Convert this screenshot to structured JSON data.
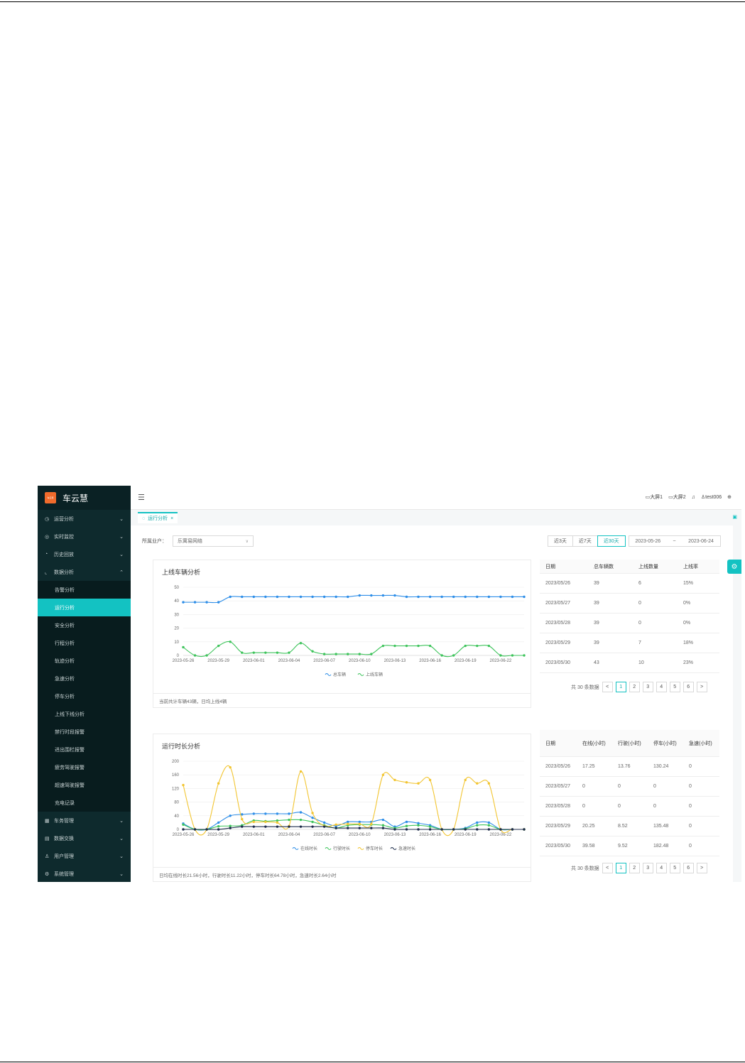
{
  "sidebar": {
    "logo_text": "车云慧",
    "logo_badge": "车云慧",
    "menu": [
      {
        "label": "运营分析",
        "icon": "clock-icon",
        "glyph": "◷",
        "chev": "⌄"
      },
      {
        "label": "实时监控",
        "icon": "eye-icon",
        "glyph": "◎",
        "chev": "⌄"
      },
      {
        "label": "历史回放",
        "icon": "history-icon",
        "glyph": "◔",
        "chev": "⌄"
      },
      {
        "label": "数据分析",
        "icon": "chart-icon",
        "glyph": "⌞",
        "chev": "⌃"
      }
    ],
    "submenu": [
      "告警分析",
      "运行分析",
      "安全分析",
      "行程分析",
      "轨迹分析",
      "急速分析",
      "停车分析",
      "上线下线分析",
      "禁行时段报警",
      "进出围栏报警",
      "疲劳驾驶报警",
      "超速驾驶报警",
      "充电记录"
    ],
    "menu_bottom": [
      {
        "label": "车务管理",
        "icon": "grid-icon",
        "glyph": "▦",
        "chev": "⌄"
      },
      {
        "label": "数据交换",
        "icon": "doc-icon",
        "glyph": "▤",
        "chev": "⌄"
      },
      {
        "label": "用户管理",
        "icon": "user-icon",
        "glyph": "♙",
        "chev": "⌄"
      },
      {
        "label": "系统管理",
        "icon": "gear-icon",
        "glyph": "⚙",
        "chev": "⌄"
      }
    ]
  },
  "topbar": {
    "screen1": "大屏1",
    "screen2": "大屏2",
    "username": "test006"
  },
  "tab": {
    "label": "运行分析",
    "close": "×"
  },
  "filter": {
    "label": "所属业户：",
    "value": "乐寓易网络"
  },
  "range": {
    "btn3": "近3天",
    "btn7": "近7天",
    "btn30": "近30天",
    "start": "2023-05-26",
    "sep": "~",
    "end": "2023-06-24"
  },
  "online_card": {
    "title": "上线车辆分析",
    "footer": "当前共计车辆43辆，日均上线4辆"
  },
  "runtime_card": {
    "title": "运行时长分析",
    "footer": "日均在线时长21.56小时，行驶时长11.22小时，停车时长64.78小时，急速时长2.64小时"
  },
  "chart_data": [
    {
      "type": "line",
      "title": "上线车辆分析",
      "x": [
        "2023-05-26",
        "2023-05-27",
        "2023-05-28",
        "2023-05-29",
        "2023-05-30",
        "2023-05-31",
        "2023-06-01",
        "2023-06-02",
        "2023-06-03",
        "2023-06-04",
        "2023-06-05",
        "2023-06-06",
        "2023-06-07",
        "2023-06-08",
        "2023-06-09",
        "2023-06-10",
        "2023-06-11",
        "2023-06-12",
        "2023-06-13",
        "2023-06-14",
        "2023-06-15",
        "2023-06-16",
        "2023-06-17",
        "2023-06-18",
        "2023-06-19",
        "2023-06-20",
        "2023-06-21",
        "2023-06-22",
        "2023-06-23",
        "2023-06-24"
      ],
      "x_tick_labels": [
        "2023-05-26",
        "2023-05-29",
        "2023-06-01",
        "2023-06-04",
        "2023-06-07",
        "2023-06-10",
        "2023-06-13",
        "2023-06-16",
        "2023-06-19",
        "2023-06-22"
      ],
      "ylim": [
        0,
        50
      ],
      "y_ticks": [
        0,
        10,
        20,
        30,
        40,
        50
      ],
      "legend": "bottom",
      "series": [
        {
          "name": "总车辆",
          "color": "#2e8ee8",
          "values": [
            39,
            39,
            39,
            39,
            43,
            43,
            43,
            43,
            43,
            43,
            43,
            43,
            43,
            43,
            43,
            44,
            44,
            44,
            44,
            43,
            43,
            43,
            43,
            43,
            43,
            43,
            43,
            43,
            43,
            43
          ]
        },
        {
          "name": "上线车辆",
          "color": "#3fc45c",
          "values": [
            6,
            0,
            0,
            7,
            10,
            2,
            2,
            2,
            2,
            2,
            9,
            3,
            1,
            1,
            1,
            1,
            1,
            7,
            7,
            7,
            7,
            7,
            0,
            0,
            7,
            7,
            7,
            0,
            0,
            0
          ]
        }
      ]
    },
    {
      "type": "line",
      "title": "运行时长分析",
      "x": [
        "2023-05-26",
        "2023-05-27",
        "2023-05-28",
        "2023-05-29",
        "2023-05-30",
        "2023-05-31",
        "2023-06-01",
        "2023-06-02",
        "2023-06-03",
        "2023-06-04",
        "2023-06-05",
        "2023-06-06",
        "2023-06-07",
        "2023-06-08",
        "2023-06-09",
        "2023-06-10",
        "2023-06-11",
        "2023-06-12",
        "2023-06-13",
        "2023-06-14",
        "2023-06-15",
        "2023-06-16",
        "2023-06-17",
        "2023-06-18",
        "2023-06-19",
        "2023-06-20",
        "2023-06-21",
        "2023-06-22",
        "2023-06-23",
        "2023-06-24"
      ],
      "x_tick_labels": [
        "2023-05-26",
        "2023-05-29",
        "2023-06-01",
        "2023-06-04",
        "2023-06-07",
        "2023-06-10",
        "2023-06-13",
        "2023-06-16",
        "2023-06-19",
        "2023-06-22"
      ],
      "ylim": [
        0,
        200
      ],
      "y_ticks": [
        0,
        40,
        80,
        120,
        160,
        200
      ],
      "legend": "bottom",
      "series": [
        {
          "name": "在线时长",
          "color": "#2e8ee8",
          "values": [
            17,
            0,
            0,
            20,
            40,
            44,
            46,
            46,
            46,
            46,
            50,
            34,
            20,
            10,
            22,
            22,
            22,
            28,
            8,
            22,
            18,
            12,
            0,
            0,
            4,
            20,
            20,
            0,
            0,
            0
          ]
        },
        {
          "name": "行驶时长",
          "color": "#3fc45c",
          "values": [
            14,
            0,
            0,
            9,
            10,
            12,
            26,
            24,
            26,
            28,
            28,
            22,
            12,
            4,
            12,
            14,
            14,
            12,
            4,
            10,
            12,
            8,
            0,
            0,
            2,
            12,
            12,
            0,
            0,
            0
          ]
        },
        {
          "name": "停车时长",
          "color": "#f2c531",
          "values": [
            130,
            0,
            0,
            135,
            182,
            30,
            22,
            22,
            20,
            10,
            170,
            48,
            10,
            14,
            16,
            16,
            16,
            160,
            145,
            138,
            135,
            145,
            0,
            0,
            145,
            135,
            135,
            0,
            0,
            0
          ]
        },
        {
          "name": "急速时长",
          "color": "#1d2b4a",
          "values": [
            0,
            0,
            0,
            0,
            4,
            8,
            8,
            8,
            8,
            8,
            8,
            8,
            8,
            4,
            4,
            4,
            4,
            4,
            0,
            0,
            0,
            0,
            0,
            0,
            0,
            0,
            0,
            0,
            0,
            0
          ]
        }
      ]
    }
  ],
  "online_table": {
    "headers": [
      "日期",
      "总车辆数",
      "上线数量",
      "上线率"
    ],
    "rows": [
      [
        "2023/05/26",
        "39",
        "6",
        "15%"
      ],
      [
        "2023/05/27",
        "39",
        "0",
        "0%"
      ],
      [
        "2023/05/28",
        "39",
        "0",
        "0%"
      ],
      [
        "2023/05/29",
        "39",
        "7",
        "18%"
      ],
      [
        "2023/05/30",
        "43",
        "10",
        "23%"
      ]
    ]
  },
  "runtime_table": {
    "headers": [
      "日期",
      "在线(小时)",
      "行驶(小时)",
      "停车(小时)",
      "急速(小时)"
    ],
    "rows": [
      [
        "2023/05/26",
        "17.25",
        "13.76",
        "130.24",
        "0"
      ],
      [
        "2023/05/27",
        "0",
        "0",
        "0",
        "0"
      ],
      [
        "2023/05/28",
        "0",
        "0",
        "0",
        "0"
      ],
      [
        "2023/05/29",
        "20.25",
        "8.52",
        "135.48",
        "0"
      ],
      [
        "2023/05/30",
        "39.58",
        "9.52",
        "182.48",
        "0"
      ]
    ]
  },
  "pager": {
    "total": "共 30 条数据",
    "prev": "<",
    "next": ">",
    "pages": [
      "1",
      "2",
      "3",
      "4",
      "5",
      "6"
    ]
  }
}
